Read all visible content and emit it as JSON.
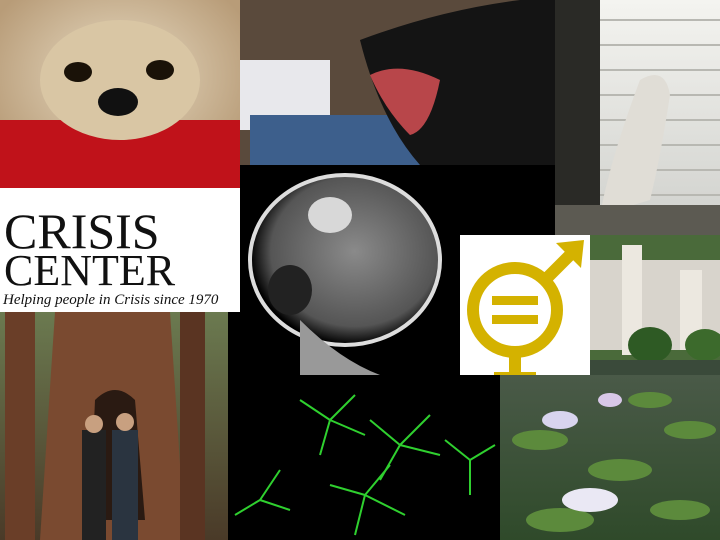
{
  "logo": {
    "line1": "CRISIS",
    "line2": "CENTER",
    "tagline": "Helping people in Crisis since 1970"
  }
}
